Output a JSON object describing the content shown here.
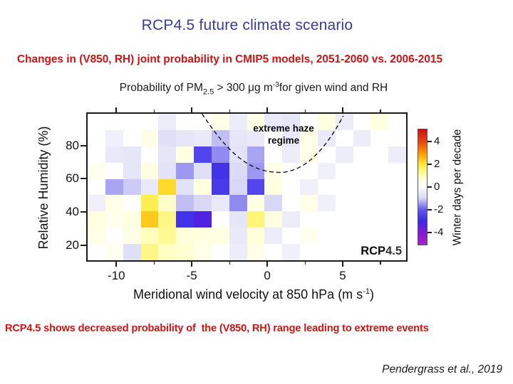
{
  "slide": {
    "title": "RCP4.5 future climate scenario",
    "heading": "Changes in (V850, RH) joint probability in CMIP5 models, 2051-2060 vs. 2006-2015",
    "conclusion": "RCP4.5 shows decreased probability of  the (V850, RH) range leading to extreme events",
    "attribution": "Pendergrass et al., 2019",
    "colors": {
      "title_blue": "#3a3a9c",
      "emphasis_red": "#cc1414",
      "text_black": "#111111"
    }
  },
  "figure": {
    "title_parts": {
      "p1": "Probability of PM",
      "sub": "2.5",
      "p2": " > 300 μg m",
      "sup": "-3",
      "p3": "for given wind and RH"
    },
    "xlabel_parts": {
      "p1": "Meridional wind velocity at 850 hPa (m s",
      "sup": "-1",
      "p2": ")"
    },
    "annotation_line1": "extreme haze",
    "annotation_line2": "regime",
    "scenario_prefix": "RCP",
    "scenario_value": "4.5"
  },
  "chart_data": {
    "type": "heatmap",
    "title": "Probability of PM2.5 > 300 ug m-3 for given wind and RH",
    "xlabel": "Meridional wind velocity at 850 hPa (m s-1)",
    "ylabel": "Relative Humidity (%)",
    "colorbar_label": "Winter days per decade",
    "value_units": "winter days per decade",
    "scenario": "RCP4.5",
    "xlim": [
      -12.0,
      9.3
    ],
    "ylim": [
      10,
      100
    ],
    "x_ticks": [
      {
        "v": -10,
        "label": "-10"
      },
      {
        "v": -5,
        "label": "-5"
      },
      {
        "v": 0,
        "label": "0"
      },
      {
        "v": 5,
        "label": "5"
      }
    ],
    "x_minor_ticks": [
      -7.5,
      -2.5,
      2.5,
      7.5
    ],
    "y_ticks": [
      {
        "v": 80,
        "label": "80"
      },
      {
        "v": 60,
        "label": "60"
      },
      {
        "v": 40,
        "label": "40"
      },
      {
        "v": 20,
        "label": "20"
      }
    ],
    "grid_rows_rh": [
      [
        90,
        100
      ],
      [
        80,
        90
      ],
      [
        70,
        80
      ],
      [
        60,
        70
      ],
      [
        50,
        60
      ],
      [
        40,
        50
      ],
      [
        30,
        40
      ],
      [
        20,
        30
      ],
      [
        10,
        20
      ]
    ],
    "values": [
      [
        0,
        0,
        0,
        0,
        -0.4,
        0,
        0,
        0.4,
        -0.4,
        0.4,
        -0.5,
        -0.6,
        0,
        0.5,
        -0.4,
        0,
        0.5,
        0
      ],
      [
        0,
        -0.3,
        0,
        0.4,
        -0.8,
        -0.6,
        -0.5,
        -1.2,
        -0.6,
        -0.5,
        0,
        -0.5,
        0.4,
        -0.5,
        0,
        -0.4,
        0,
        0
      ],
      [
        0,
        -0.5,
        -0.6,
        0,
        -0.6,
        0.5,
        -2.4,
        -1.6,
        -0.7,
        -1.4,
        0,
        -0.4,
        0.4,
        0,
        -0.4,
        0,
        0,
        -0.4
      ],
      [
        0.3,
        0,
        -0.6,
        0.5,
        -0.7,
        -1.5,
        -0.8,
        -2.8,
        -0.9,
        -1.5,
        0.4,
        0,
        0,
        -0.3,
        0,
        0,
        0,
        0
      ],
      [
        0,
        -1.4,
        -1.1,
        -0.5,
        2.2,
        -0.7,
        0.5,
        -2.6,
        -1.0,
        -2.4,
        0.5,
        0,
        -0.3,
        0,
        0,
        0,
        0,
        0
      ],
      [
        -0.3,
        0.4,
        0,
        1.8,
        0.8,
        -1.2,
        -1.0,
        -0.5,
        -1.6,
        0.5,
        -1.0,
        0,
        0.4,
        -0.3,
        0,
        0,
        0,
        0
      ],
      [
        0.5,
        0.3,
        0.5,
        2.4,
        1.4,
        -2.8,
        -3.3,
        0,
        -0.6,
        1.5,
        0.5,
        -0.4,
        0,
        0,
        0,
        0,
        0,
        0
      ],
      [
        0.4,
        0,
        0.4,
        1.0,
        1.3,
        0.6,
        0.5,
        0.5,
        -0.5,
        0.6,
        -0.4,
        0,
        0.3,
        0,
        0,
        0,
        0,
        0
      ],
      [
        0,
        0.3,
        -0.8,
        1.4,
        0.9,
        0.7,
        0.4,
        0,
        -0.4,
        0.4,
        0,
        -0.3,
        0,
        0,
        0,
        0,
        0,
        0
      ]
    ],
    "colormap_stops": [
      [
        -5.1,
        "#a520c8"
      ],
      [
        -4.0,
        "#8318d8"
      ],
      [
        -3.0,
        "#3a28e8"
      ],
      [
        -2.0,
        "#6258ee"
      ],
      [
        -1.0,
        "#d8d8f6"
      ],
      [
        -0.3,
        "#f0f0fb"
      ],
      [
        0,
        "#ffffff"
      ],
      [
        0.3,
        "#fffff0"
      ],
      [
        1.0,
        "#ffffbb"
      ],
      [
        2.0,
        "#ffea35"
      ],
      [
        3.0,
        "#ff9800"
      ],
      [
        4.0,
        "#ea4510"
      ],
      [
        5.1,
        "#cc0f0f"
      ]
    ],
    "colorbar_range": [
      -5.1,
      5.1
    ],
    "colorbar_ticks": [
      {
        "v": 4,
        "label": "4"
      },
      {
        "v": 2,
        "label": "2"
      },
      {
        "v": 0,
        "label": "0"
      },
      {
        "v": -2,
        "label": "-2"
      },
      {
        "v": -4,
        "label": "-4"
      }
    ],
    "annotation": "extreme haze regime",
    "legend_position": "right",
    "grid": "off"
  }
}
